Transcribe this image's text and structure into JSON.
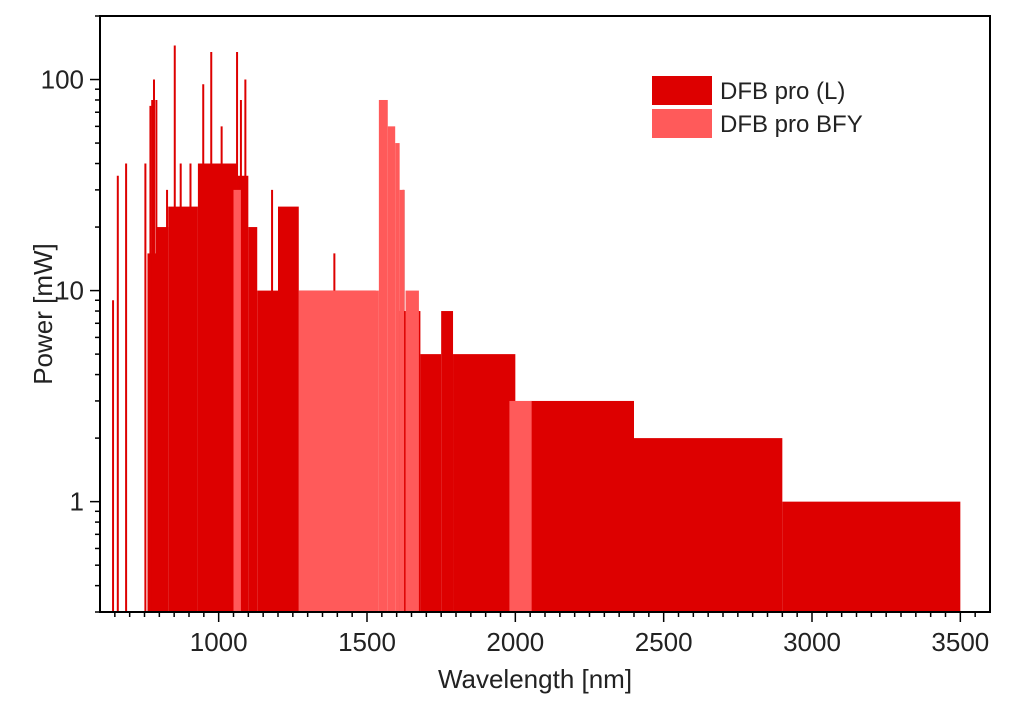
{
  "chart_data": {
    "type": "area",
    "xlabel": "Wavelength [nm]",
    "ylabel": "Power [mW]",
    "xlim": [
      600,
      3600
    ],
    "ylim": [
      0.3,
      200
    ],
    "yscale": "log",
    "xticks": [
      1000,
      1500,
      2000,
      2500,
      3000,
      3500
    ],
    "xtick_labels": [
      "1000",
      "1500",
      "2000",
      "2500",
      "3000",
      "3500"
    ],
    "yticks": [
      1,
      10,
      100
    ],
    "ytick_labels": [
      "1",
      "10",
      "100"
    ],
    "grid": false,
    "legend_position": "top-right",
    "colors": {
      "dfb_l": "#dd0000",
      "dfb_bfy": "#ff5a5a",
      "axis": "#000000",
      "background": "#ffffff"
    },
    "series": [
      {
        "name": "DFB pro (L)",
        "color": "#dd0000",
        "steps": [
          {
            "x0": 760,
            "x1": 790,
            "y": 15
          },
          {
            "x0": 790,
            "x1": 830,
            "y": 20
          },
          {
            "x0": 830,
            "x1": 930,
            "y": 25
          },
          {
            "x0": 930,
            "x1": 1060,
            "y": 40
          },
          {
            "x0": 1060,
            "x1": 1100,
            "y": 35
          },
          {
            "x0": 1100,
            "x1": 1130,
            "y": 20
          },
          {
            "x0": 1130,
            "x1": 1200,
            "y": 10
          },
          {
            "x0": 1200,
            "x1": 1270,
            "y": 25
          },
          {
            "x0": 1270,
            "x1": 1530,
            "y": 10
          },
          {
            "x0": 1610,
            "x1": 1680,
            "y": 8
          },
          {
            "x0": 1680,
            "x1": 1750,
            "y": 5
          },
          {
            "x0": 1750,
            "x1": 1790,
            "y": 8
          },
          {
            "x0": 1790,
            "x1": 2000,
            "y": 5
          },
          {
            "x0": 2050,
            "x1": 2400,
            "y": 3
          },
          {
            "x0": 2400,
            "x1": 2900,
            "y": 2
          },
          {
            "x0": 2900,
            "x1": 3500,
            "y": 1
          }
        ],
        "spikes": [
          {
            "x": 644,
            "y": 9
          },
          {
            "x": 660,
            "y": 35
          },
          {
            "x": 688,
            "y": 40
          },
          {
            "x": 753,
            "y": 40
          },
          {
            "x": 770,
            "y": 75
          },
          {
            "x": 776,
            "y": 80
          },
          {
            "x": 782,
            "y": 100
          },
          {
            "x": 790,
            "y": 80
          },
          {
            "x": 826,
            "y": 30
          },
          {
            "x": 852,
            "y": 145
          },
          {
            "x": 872,
            "y": 40
          },
          {
            "x": 905,
            "y": 40
          },
          {
            "x": 948,
            "y": 95
          },
          {
            "x": 975,
            "y": 135
          },
          {
            "x": 1010,
            "y": 60
          },
          {
            "x": 1062,
            "y": 135
          },
          {
            "x": 1075,
            "y": 80
          },
          {
            "x": 1090,
            "y": 100
          },
          {
            "x": 1180,
            "y": 30
          },
          {
            "x": 1390,
            "y": 15
          },
          {
            "x": 1623,
            "y": 30
          }
        ]
      },
      {
        "name": "DFB pro BFY",
        "color": "#ff5a5a",
        "steps": [
          {
            "x0": 1050,
            "x1": 1075,
            "y": 30
          },
          {
            "x0": 1270,
            "x1": 1540,
            "y": 10
          },
          {
            "x0": 1540,
            "x1": 1570,
            "y": 80
          },
          {
            "x0": 1570,
            "x1": 1595,
            "y": 60
          },
          {
            "x0": 1595,
            "x1": 1610,
            "y": 50
          },
          {
            "x0": 1610,
            "x1": 1625,
            "y": 30
          },
          {
            "x0": 1630,
            "x1": 1675,
            "y": 10
          },
          {
            "x0": 1980,
            "x1": 2055,
            "y": 3
          }
        ],
        "spikes": []
      }
    ]
  }
}
